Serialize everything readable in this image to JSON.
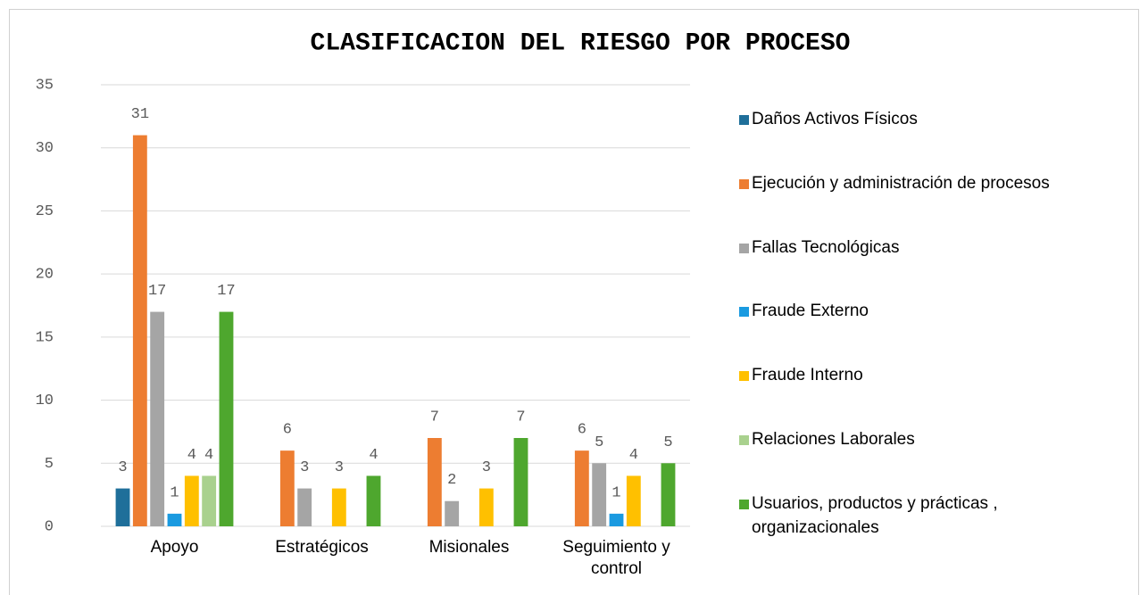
{
  "chart_data": {
    "type": "bar",
    "title": "CLASIFICACION DEL RIESGO POR PROCESO",
    "categories": [
      "Apoyo",
      "Estratégicos",
      "Misionales",
      "Seguimiento y control"
    ],
    "series": [
      {
        "name": "Daños Activos Físicos",
        "color": "#1f6f9a",
        "values": [
          3,
          null,
          null,
          null
        ]
      },
      {
        "name": "Ejecución y administración de procesos",
        "color": "#ed7d31",
        "values": [
          31,
          6,
          7,
          6
        ]
      },
      {
        "name": "Fallas Tecnológicas",
        "color": "#a5a5a5",
        "values": [
          17,
          3,
          2,
          5
        ]
      },
      {
        "name": "Fraude Externo",
        "color": "#1a9ae0",
        "values": [
          1,
          null,
          null,
          1
        ]
      },
      {
        "name": "Fraude Interno",
        "color": "#ffc000",
        "values": [
          4,
          3,
          3,
          4
        ]
      },
      {
        "name": "Relaciones Laborales",
        "color": "#a9d18e",
        "values": [
          4,
          null,
          null,
          null
        ]
      },
      {
        "name": "Usuarios, productos y prácticas , organizacionales",
        "color": "#4ea72e",
        "values": [
          17,
          4,
          7,
          5
        ]
      }
    ],
    "ylim": [
      0,
      35
    ],
    "yticks": [
      0,
      5,
      10,
      15,
      20,
      25,
      30,
      35
    ],
    "grid": true,
    "legend": "right"
  }
}
